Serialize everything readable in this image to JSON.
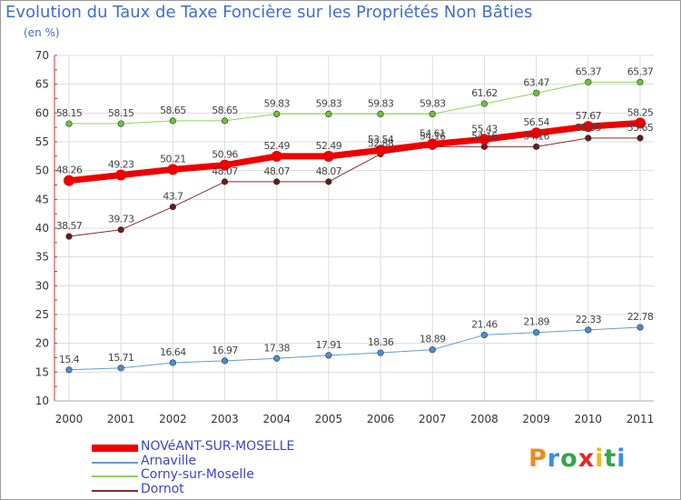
{
  "header": {
    "title": "Evolution du Taux de Taxe Foncière sur les Propriétés Non Bâties",
    "unit": "(en %)"
  },
  "logo": {
    "text": "Proxiti",
    "colors": [
      "#f08a1c",
      "#3a8ee6",
      "#2da84a",
      "#e02a2a",
      "#f0b81c",
      "#2da84a",
      "#3a8ee6"
    ]
  },
  "chart_data": {
    "type": "line",
    "title": "Evolution du Taux de Taxe Foncière sur les Propriétés Non Bâties",
    "ylabel": "(en %)",
    "xlabel": "",
    "categories": [
      "2000",
      "2001",
      "2002",
      "2003",
      "2004",
      "2005",
      "2006",
      "2007",
      "2008",
      "2009",
      "2010",
      "2011"
    ],
    "ylim": [
      10,
      70
    ],
    "yticks": [
      10,
      15,
      20,
      25,
      30,
      35,
      40,
      45,
      50,
      55,
      60,
      65,
      70
    ],
    "grid": true,
    "legend": "bottom-left",
    "series": [
      {
        "name": "Dornot",
        "color": "#8b2a2a",
        "marker": "#6b1a1a",
        "width": 1,
        "values": [
          38.57,
          39.73,
          43.7,
          48.07,
          48.07,
          48.07,
          52.88,
          54.16,
          54.16,
          54.16,
          55.65,
          55.65
        ],
        "labels": [
          "38.57",
          "39.73",
          "43.7",
          "48.07",
          "48.07",
          "48.07",
          "52.88",
          "54.16",
          "54.16",
          "54.16",
          "55.65",
          "55.65"
        ]
      },
      {
        "name": "Arnaville",
        "color": "#5f9fd0",
        "marker": "#4a8fcf",
        "width": 1,
        "values": [
          15.4,
          15.71,
          16.64,
          16.97,
          17.38,
          17.91,
          18.36,
          18.89,
          21.46,
          21.89,
          22.33,
          22.78
        ],
        "labels": [
          "15.4",
          "15.71",
          "16.64",
          "16.97",
          "17.38",
          "17.91",
          "18.36",
          "18.89",
          "21.46",
          "21.89",
          "22.33",
          "22.78"
        ]
      },
      {
        "name": "Corny-sur-Moselle",
        "color": "#8cd65a",
        "marker": "#6cc43a",
        "width": 1,
        "values": [
          58.15,
          58.15,
          58.65,
          58.65,
          59.83,
          59.83,
          59.83,
          59.83,
          61.62,
          63.47,
          65.37,
          65.37
        ],
        "labels": [
          "58.15",
          "58.15",
          "58.65",
          "58.65",
          "59.83",
          "59.83",
          "59.83",
          "59.83",
          "61.62",
          "63.47",
          "65.37",
          "65.37"
        ]
      },
      {
        "name": "NOVéANT-SUR-MOSELLE",
        "color": "#ee0000",
        "marker": "#ee0000",
        "width": 7,
        "values": [
          48.26,
          49.23,
          50.21,
          50.96,
          52.49,
          52.49,
          53.54,
          54.61,
          55.43,
          56.54,
          57.67,
          58.25
        ],
        "labels": [
          "48.26",
          "49.23",
          "50.21",
          "50.96",
          "52.49",
          "52.49",
          "53.54",
          "54.61",
          "55.43",
          "56.54",
          "57.67",
          "58.25"
        ]
      }
    ],
    "legend_order": [
      "NOVéANT-SUR-MOSELLE",
      "Arnaville",
      "Corny-sur-Moselle",
      "Dornot"
    ]
  }
}
